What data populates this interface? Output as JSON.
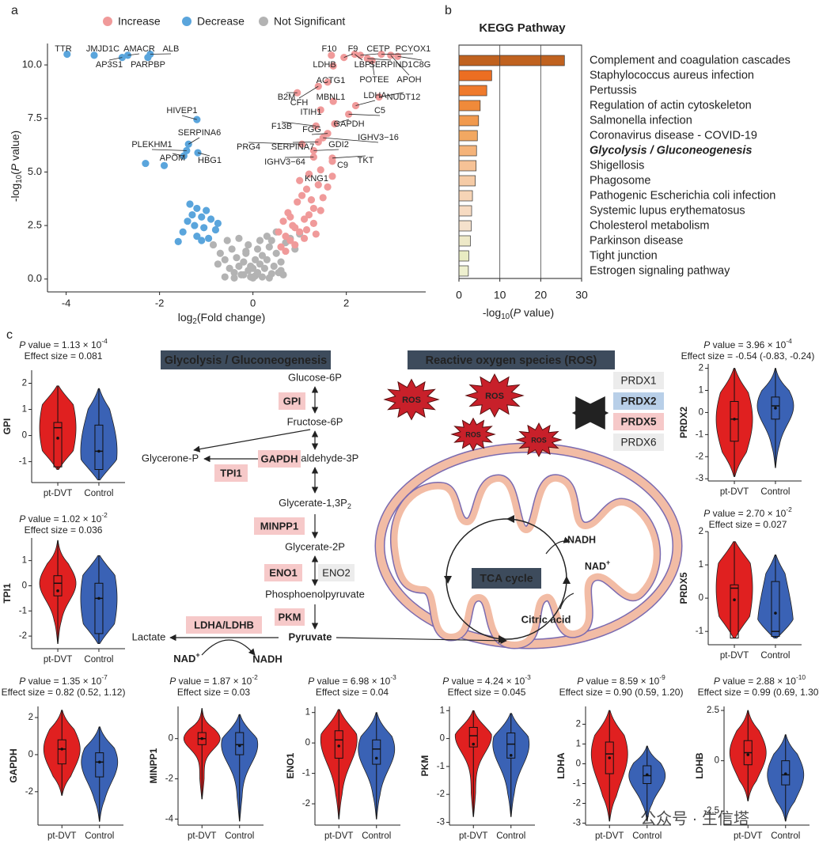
{
  "panel_labels": [
    "a",
    "b",
    "c"
  ],
  "watermark": "公众号 · 生信塔",
  "chart_data": [
    {
      "type": "scatter",
      "legend": "top",
      "x_label": [
        "log",
        "2",
        "(Fold change)"
      ],
      "y_label": [
        "-log",
        "10",
        "(",
        "P",
        " value)"
      ],
      "xlim": [
        -4.4,
        3.7
      ],
      "ylim": [
        -0.6,
        11
      ],
      "xticks": [
        -4,
        -2,
        0,
        2
      ],
      "yticks": [
        {
          "value": 0,
          "label": "0.0"
        },
        2.5,
        {
          "value": 5,
          "label": "5.0"
        },
        7.5,
        {
          "value": 10,
          "label": "10.0"
        }
      ],
      "series": [
        {
          "name": "Increase",
          "color": "#f09a9a",
          "x": [
            1.68,
            1.95,
            2.18,
            2.3,
            2.75,
            2.45,
            3.1,
            1.72,
            2.55,
            2.95,
            1.4,
            1.6,
            0.95,
            1.72,
            2.7,
            2.2,
            1.45,
            2.05,
            1.75,
            1.35,
            1.6,
            1.5,
            1.05,
            1.4,
            1.3,
            1.3,
            1.7,
            1.7,
            1.45,
            0.6,
            0.7,
            0.8,
            0.9,
            1.0,
            1.1,
            1.2,
            1.3,
            0.65,
            0.75,
            0.85,
            0.95,
            1.05,
            1.15,
            1.25,
            0.7,
            0.9,
            1.1,
            1.3,
            1.5,
            1.0,
            1.2,
            1.4,
            0.8,
            1.6,
            1.15,
            1.35,
            0.55,
            1.45,
            1.7
          ],
          "y": [
            10.45,
            10.35,
            10.5,
            10.45,
            10.5,
            10.3,
            10.4,
            9.95,
            10.2,
            10.45,
            9.0,
            9.2,
            8.7,
            8.3,
            8.5,
            8.1,
            7.9,
            7.7,
            7.25,
            7.15,
            6.8,
            6.6,
            6.3,
            6.4,
            6.0,
            5.7,
            5.65,
            5.5,
            5.1,
            1.5,
            2.0,
            1.8,
            2.4,
            2.2,
            2.8,
            3.0,
            3.3,
            2.7,
            3.1,
            2.5,
            3.6,
            3.9,
            4.2,
            3.7,
            1.3,
            1.6,
            1.9,
            2.6,
            3.8,
            4.6,
            4.9,
            4.4,
            2.9,
            4.3,
            2.3,
            2.1,
            2.2,
            3.2,
            4.8
          ],
          "labels": [
            "F10",
            "F9",
            "LBP",
            "CETP",
            "PCYOX1",
            "SERPIND1",
            "C8G",
            "LDHB",
            "POTEE",
            "APOH",
            "CFH",
            "ACTG1",
            "B2M",
            "MBNL1",
            "NUDT12",
            "LDHA",
            "ITIH1",
            "C5",
            "GAPDH",
            "F13B",
            "FGG",
            "IGHV3−16",
            "PRG4",
            "SERPINA7",
            "GDI2",
            "IGHV3−64",
            "TKT",
            "C9",
            "KNG1",
            null,
            null,
            null,
            null,
            null,
            null,
            null,
            null,
            null,
            null,
            null,
            null,
            null,
            null,
            null,
            null,
            null,
            null,
            null,
            null,
            null,
            null,
            null,
            null,
            null,
            null,
            null,
            null,
            null,
            null
          ]
        },
        {
          "name": "Decrease",
          "color": "#5aa5dc",
          "x": [
            -3.98,
            -3.4,
            -2.8,
            -2.68,
            -2.2,
            -2.25,
            -1.2,
            -1.38,
            -1.42,
            -1.48,
            -1.18,
            -2.3,
            -1.9,
            -1.35,
            -1.2,
            -1.0,
            -1.3,
            -1.1,
            -0.9,
            -1.4,
            -1.25,
            -1.05,
            -0.8,
            -1.5,
            -1.2,
            -0.95,
            -1.6,
            -0.75,
            -1.1
          ],
          "y": [
            10.5,
            10.45,
            10.35,
            10.45,
            10.5,
            10.35,
            7.45,
            6.3,
            6.0,
            5.75,
            5.9,
            5.4,
            5.3,
            3.5,
            3.3,
            3.2,
            3.0,
            2.9,
            2.8,
            2.7,
            2.5,
            2.4,
            2.3,
            2.2,
            2.0,
            1.9,
            1.75,
            2.6,
            1.8
          ],
          "labels": [
            "TTR",
            "JMJD1C",
            "AP3S1",
            "AMACR",
            "ALB",
            "PARPBP",
            "HIVEP1",
            "SERPINA6",
            "PLEKHM1",
            "APOM",
            "HBG1",
            null,
            null,
            null,
            null,
            null,
            null,
            null,
            null,
            null,
            null,
            null,
            null,
            null,
            null,
            null,
            null,
            null,
            null
          ]
        },
        {
          "name": "Not Significant",
          "color": "#b3b3b3",
          "x": [
            -0.85,
            -0.7,
            -0.6,
            -0.5,
            -0.45,
            -0.4,
            -0.35,
            -0.3,
            -0.25,
            -0.2,
            -0.15,
            -0.1,
            -0.05,
            0,
            0.05,
            0.1,
            0.15,
            0.2,
            0.25,
            0.3,
            0.35,
            0.4,
            0.45,
            0.5,
            0.55,
            0.6,
            0.7,
            0.8,
            -0.6,
            -0.4,
            -0.2,
            0,
            0.2,
            0.4,
            0.6,
            -0.3,
            -0.1,
            0.1,
            0.3,
            0.5,
            0.05,
            -0.05,
            0.15,
            -0.15,
            0.9,
            1.0,
            -0.75,
            0.65,
            0.35,
            -0.55
          ],
          "y": [
            1.6,
            1.2,
            0.9,
            0.5,
            1.4,
            0.3,
            1.0,
            0.6,
            0.2,
            0.8,
            1.3,
            0.4,
            0.1,
            0.05,
            0.15,
            0.3,
            0.7,
            1.1,
            0.5,
            0.9,
            1.5,
            1.8,
            0.6,
            1.2,
            0.3,
            0.8,
            1.7,
            1.9,
            0.1,
            0.05,
            0.2,
            0.5,
            0.1,
            0.25,
            0.4,
            1.9,
            1.6,
            1.4,
            2.0,
            2.2,
            0.9,
            0.6,
            1.8,
            1.2,
            1.4,
            2.1,
            0.7,
            0.2,
            0.05,
            1.8
          ]
        }
      ]
    },
    {
      "type": "barh",
      "title": "KEGG Pathway",
      "x_label": [
        "-log",
        "10",
        "(",
        "P",
        " value)"
      ],
      "xlim": [
        0,
        30
      ],
      "xticks": [
        0,
        10,
        20,
        30
      ],
      "grid": true,
      "categories": [
        "Complement and coagulation cascades",
        "Staphylococcus aureus infection",
        "Pertussis",
        "Regulation of actin cytoskeleton",
        "Salmonella infection",
        "Coronavirus disease - COVID-19",
        "Glycolysis / Gluconeogenesis",
        "Shigellosis",
        "Phagosome",
        "Pathogenic Escherichia coli infection",
        "Systemic lupus erythematosus",
        "Cholesterol metabolism",
        "Parkinson disease",
        "Tight junction",
        "Estrogen signaling pathway"
      ],
      "values": [
        25.8,
        8.0,
        6.8,
        5.2,
        4.8,
        4.5,
        4.3,
        4.2,
        4.0,
        3.3,
        3.1,
        3.0,
        2.8,
        2.4,
        2.3
      ],
      "colors": [
        "#c0621f",
        "#ec6e22",
        "#ef7a2c",
        "#f08a3a",
        "#f19a4e",
        "#f2a862",
        "#f4b37a",
        "#f6c296",
        "#f5cba6",
        "#f6d4b6",
        "#f7dbc2",
        "#f5e1cc",
        "#eee9c8",
        "#e8ecc2",
        "#eef0cf"
      ],
      "label_colors": [
        "#222",
        "#222",
        "#222",
        "#222",
        "#222",
        "#222",
        "#b22222",
        "#222",
        "#222",
        "#222",
        "#222",
        "#222",
        "#222",
        "#222",
        "#222"
      ]
    },
    {
      "type": "violin",
      "y_label": "GPI",
      "p_value": [
        "P",
        " value = 1.13 × 10",
        "-4"
      ],
      "effect_size": "Effect size = 0.081",
      "categories": [
        "pt-DVT",
        "Control"
      ],
      "colors": [
        "#e02020",
        "#3a62b5"
      ],
      "ylim": [
        -1.8,
        2.5
      ],
      "yticks": [
        -1,
        0,
        1,
        2
      ],
      "stats": [
        {
          "min": -1.3,
          "q1": -1.2,
          "median": 0.3,
          "q3": 0.5,
          "max": 1.9,
          "mean": -0.1
        },
        {
          "min": -1.7,
          "q1": -1.3,
          "median": -0.6,
          "q3": 0.4,
          "max": 1.8,
          "mean": -0.6
        }
      ]
    },
    {
      "type": "violin",
      "y_label": "TPI1",
      "p_value": [
        "P",
        " value = 1.02 × 10",
        "-2"
      ],
      "effect_size": "Effect size = 0.036",
      "categories": [
        "pt-DVT",
        "Control"
      ],
      "colors": [
        "#e02020",
        "#3a62b5"
      ],
      "ylim": [
        -2.5,
        1.9
      ],
      "yticks": [
        -2,
        -1,
        0,
        1
      ],
      "stats": [
        {
          "min": -2.3,
          "q1": -0.4,
          "median": 0.1,
          "q3": 0.4,
          "max": 1.8,
          "mean": -0.2
        },
        {
          "min": -2.3,
          "q1": -1.9,
          "median": -0.5,
          "q3": 0.1,
          "max": 1.2,
          "mean": -0.5
        }
      ]
    },
    {
      "type": "violin",
      "y_label": "PRDX2",
      "p_value": [
        "P",
        " value = 3.96 × 10",
        "-4"
      ],
      "effect_size": "Effect size = -0.54 (-0.83, -0.24)",
      "categories": [
        "pt-DVT",
        "Control"
      ],
      "colors": [
        "#e02020",
        "#3a62b5"
      ],
      "ylim": [
        -3.1,
        2.2
      ],
      "yticks": [
        -3,
        -2,
        -1,
        0,
        1,
        2
      ],
      "stats": [
        {
          "min": -2.9,
          "q1": -1.3,
          "median": -0.3,
          "q3": 0.5,
          "max": 2.0,
          "mean": -0.3
        },
        {
          "min": -2.5,
          "q1": -0.3,
          "median": 0.3,
          "q3": 0.7,
          "max": 2.0,
          "mean": 0.2
        }
      ]
    },
    {
      "type": "violin",
      "y_label": "PRDX5",
      "p_value": [
        "P",
        " value = 2.70 × 10",
        "-2"
      ],
      "effect_size": "Effect size = 0.027",
      "categories": [
        "pt-DVT",
        "Control"
      ],
      "colors": [
        "#e02020",
        "#3a62b5"
      ],
      "ylim": [
        -1.4,
        2.0
      ],
      "yticks": [
        -1,
        0,
        1,
        2
      ],
      "stats": [
        {
          "min": -1.2,
          "q1": -1.2,
          "median": 0.3,
          "q3": 0.4,
          "max": 1.7,
          "mean": -0.05
        },
        {
          "min": -1.2,
          "q1": -1.15,
          "median": -1.0,
          "q3": 0.5,
          "max": 1.3,
          "mean": -0.45
        }
      ]
    },
    {
      "type": "violin",
      "y_label": "GAPDH",
      "p_value": [
        "P",
        " value = 1.35 × 10",
        "-7"
      ],
      "effect_size": "Effect size = 0.82 (0.52, 1.12)",
      "categories": [
        "pt-DVT",
        "Control"
      ],
      "colors": [
        "#e02020",
        "#3a62b5"
      ],
      "ylim": [
        -3.8,
        2.6
      ],
      "yticks": [
        -2,
        0,
        2
      ],
      "stats": [
        {
          "min": -2.2,
          "q1": -0.5,
          "median": 0.3,
          "q3": 0.8,
          "max": 2.4,
          "mean": 0.3
        },
        {
          "min": -3.6,
          "q1": -1.2,
          "median": -0.4,
          "q3": 0.1,
          "max": 1.5,
          "mean": -0.4
        }
      ]
    },
    {
      "type": "violin",
      "y_label": "MINPP1",
      "p_value": [
        "P",
        " value = 1.87 × 10",
        "-2"
      ],
      "effect_size": "Effect size = 0.03",
      "categories": [
        "pt-DVT",
        "Control"
      ],
      "colors": [
        "#e02020",
        "#3a62b5"
      ],
      "ylim": [
        -4.3,
        1.6
      ],
      "yticks": [
        -4,
        -2,
        0
      ],
      "stats": [
        {
          "min": -3.0,
          "q1": -0.3,
          "median": 0,
          "q3": 0.3,
          "max": 1.5,
          "mean": 0
        },
        {
          "min": -4.1,
          "q1": -0.8,
          "median": -0.3,
          "q3": 0.3,
          "max": 1.2,
          "mean": -0.35
        }
      ]
    },
    {
      "type": "violin",
      "y_label": "ENO1",
      "p_value": [
        "P",
        " value = 6.98 × 10",
        "-3"
      ],
      "effect_size": "Effect size = 0.04",
      "categories": [
        "pt-DVT",
        "Control"
      ],
      "colors": [
        "#e02020",
        "#3a62b5"
      ],
      "ylim": [
        -2.7,
        1.2
      ],
      "yticks": [
        -2,
        -1,
        0,
        1
      ],
      "stats": [
        {
          "min": -2.5,
          "q1": -0.5,
          "median": 0.1,
          "q3": 0.4,
          "max": 1.1,
          "mean": -0.1
        },
        {
          "min": -2.5,
          "q1": -0.7,
          "median": -0.2,
          "q3": 0.1,
          "max": 1.0,
          "mean": -0.5
        }
      ]
    },
    {
      "type": "violin",
      "y_label": "PKM",
      "p_value": [
        "P",
        " value = 4.24 × 10",
        "-3"
      ],
      "effect_size": "Effect size = 0.045",
      "categories": [
        "pt-DVT",
        "Control"
      ],
      "colors": [
        "#e02020",
        "#3a62b5"
      ],
      "ylim": [
        -3.1,
        1.15
      ],
      "yticks": [
        -3,
        -2,
        -1,
        0,
        1
      ],
      "stats": [
        {
          "min": -2.8,
          "q1": -0.3,
          "median": 0.1,
          "q3": 0.4,
          "max": 1.0,
          "mean": -0.2
        },
        {
          "min": -2.8,
          "q1": -0.7,
          "median": -0.2,
          "q3": 0.2,
          "max": 0.9,
          "mean": -0.6
        }
      ]
    },
    {
      "type": "violin",
      "y_label": "LDHA",
      "p_value": [
        "P",
        " value = 8.59 × 10",
        "-9"
      ],
      "effect_size": "Effect size = 0.90 (0.59, 1.20)",
      "categories": [
        "pt-DVT",
        "Control"
      ],
      "colors": [
        "#e02020",
        "#3a62b5"
      ],
      "ylim": [
        -3.1,
        2.9
      ],
      "yticks": [
        -3,
        -2,
        -1,
        0,
        1,
        2
      ],
      "stats": [
        {
          "min": -2.9,
          "q1": -0.5,
          "median": 0.5,
          "q3": 1.1,
          "max": 2.7,
          "mean": 0.3
        },
        {
          "min": -2.9,
          "q1": -1.0,
          "median": -0.6,
          "q3": -0.1,
          "max": 0.9,
          "mean": -0.55
        }
      ]
    },
    {
      "type": "violin",
      "y_label": "LDHB",
      "p_value": [
        "P",
        " value = 2.88 × 10",
        "-10"
      ],
      "effect_size": "Effect size = 0.99 (0.69, 1.30)",
      "categories": [
        "pt-DVT",
        "Control"
      ],
      "colors": [
        "#e02020",
        "#3a62b5"
      ],
      "ylim": [
        -3.2,
        2.7
      ],
      "yticks": [
        -2.5,
        0,
        2.5
      ],
      "stats": [
        {
          "min": -2.0,
          "q1": -0.2,
          "median": 0.4,
          "q3": 1.0,
          "max": 2.5,
          "mean": 0.3
        },
        {
          "min": -3.0,
          "q1": -1.2,
          "median": -0.7,
          "q3": 0,
          "max": 1.3,
          "mean": -0.65
        }
      ]
    }
  ],
  "pathway": {
    "headers": [
      "Glycolysis / Gluconeogenesis",
      "Reactive oxygen species (ROS)"
    ],
    "metabolites": [
      "Glucose-6P",
      "Fructose-6P",
      "Glycerone-P",
      "Glyceraldehyde-3P",
      [
        "Glycerate-1,3P",
        "2"
      ],
      "Glycerate-2P",
      "Phosphoenolpyruvate",
      "Pyruvate",
      "Lactate",
      [
        "NAD",
        "+"
      ],
      "NADH"
    ],
    "enzymes": [
      "GPI",
      "TPI1",
      "GAPDH",
      "MINPP1",
      "ENO1",
      "ENO2",
      "PKM",
      "LDHA/LDHB"
    ],
    "ros": [
      "ROS",
      "ROS",
      "ROS",
      "ROS"
    ],
    "prdx": [
      "PRDX1",
      "PRDX2",
      "PRDX5",
      "PRDX6"
    ],
    "tca": {
      "label": "TCA cycle",
      "nadh": "NADH",
      "nad": [
        "NAD",
        "+"
      ],
      "citric": "Citric acid"
    }
  }
}
